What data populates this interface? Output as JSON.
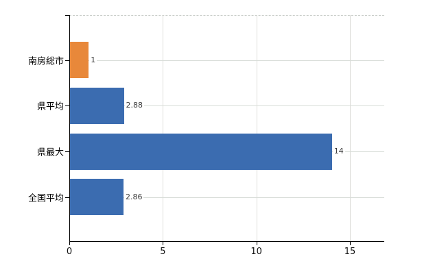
{
  "chart_data": {
    "type": "bar",
    "orientation": "horizontal",
    "title": "",
    "categories": [
      "南房総市",
      "県平均",
      "県最大",
      "全国平均"
    ],
    "values": [
      1,
      2.88,
      14,
      2.86
    ],
    "value_labels": [
      "1",
      "2.88",
      "14",
      "2.86"
    ],
    "bar_colors": [
      "#e8883a",
      "#3b6cb0",
      "#3b6cb0",
      "#3b6cb0"
    ],
    "x_tick_labels": [
      "0",
      "5",
      "10",
      "15"
    ],
    "x_tick_values": [
      0,
      5,
      10,
      15
    ],
    "xlim": [
      0,
      16.8
    ],
    "grid": true,
    "legend": false,
    "colors": {
      "orange_bar": "#e8883a",
      "blue_bar": "#3b6cb0",
      "gridline": "#d8ddd8",
      "plot_top_border": "#c8ccc8",
      "axis": "#000000",
      "value_label_text": "#3a3a3a",
      "category_label_text": "#000000",
      "tick_label_text": "#111111",
      "background": "#ffffff"
    }
  }
}
